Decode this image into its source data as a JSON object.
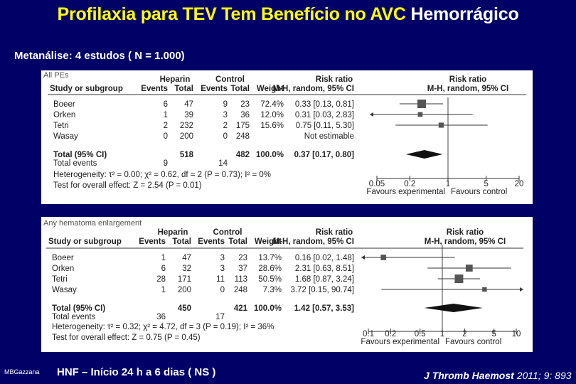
{
  "slide": {
    "title_part1": "Profilaxia para TEV Tem Benefício no AVC",
    "title_part2": "Hemorrágico",
    "subtitle": "Metanálise: 4 estudos ( N = 1.000)",
    "footer_left": "MBGazzana",
    "footer_mid": "HNF – Início 24 h a 6 dias ( NS )",
    "footer_right_journal": "J Thromb Haemost",
    "footer_right_ref": " 2011; 9: 893"
  },
  "chart_data": [
    {
      "type": "forest",
      "panel_label": "All PEs",
      "headers": {
        "group1": "Heparin",
        "group2": "Control",
        "study": "Study or subgroup",
        "events": "Events",
        "total": "Total",
        "weight": "Weight",
        "rr_top": "Risk ratio",
        "rr_method": "M-H, random, 95% CI"
      },
      "studies": [
        {
          "name": "Boeer",
          "e1": "6",
          "t1": "47",
          "e2": "9",
          "t2": "23",
          "weight": "72.4%",
          "ci_text": "0.33 [0.13, 0.81]",
          "rr": 0.33,
          "lo": 0.13,
          "hi": 0.81
        },
        {
          "name": "Orken",
          "e1": "1",
          "t1": "39",
          "e2": "3",
          "t2": "36",
          "weight": "12.0%",
          "ci_text": "0.31 [0.03, 2.83]",
          "rr": 0.31,
          "lo": 0.03,
          "hi": 2.83
        },
        {
          "name": "Tetri",
          "e1": "2",
          "t1": "232",
          "e2": "2",
          "t2": "175",
          "weight": "15.6%",
          "ci_text": "0.75 [0.11, 5.30]",
          "rr": 0.75,
          "lo": 0.11,
          "hi": 5.3
        },
        {
          "name": "Wasay",
          "e1": "0",
          "t1": "200",
          "e2": "0",
          "t2": "248",
          "weight": "",
          "ci_text": "Not estimable",
          "rr": null,
          "lo": null,
          "hi": null
        }
      ],
      "total": {
        "label": "Total (95% CI)",
        "t1": "518",
        "t2": "482",
        "weight": "100.0%",
        "ci_text": "0.37 [0.17, 0.80]",
        "rr": 0.37,
        "lo": 0.17,
        "hi": 0.8
      },
      "total_events": {
        "label": "Total events",
        "e1": "9",
        "e2": "14"
      },
      "heterogeneity": "Heterogeneity: τ² = 0.00; χ² = 0.62, df = 2 (P = 0.73); I² = 0%",
      "overall_effect": "Test for overall effect: Z = 2.54 (P = 0.01)",
      "axis": {
        "scale": "log",
        "ticks": [
          0.05,
          0.2,
          1,
          5,
          20
        ],
        "tick_labels": [
          "0.05",
          "0.2",
          "1",
          "5",
          "20"
        ],
        "left_label": "Favours experimental",
        "right_label": "Favours control"
      }
    },
    {
      "type": "forest",
      "panel_label": "Any hematoma enlargement",
      "headers": {
        "group1": "Heparin",
        "group2": "Control",
        "study": "Study or subgroup",
        "events": "Events",
        "total": "Total",
        "weight": "Weight",
        "rr_top": "Risk ratio",
        "rr_method": "M-H, random, 95% CI"
      },
      "studies": [
        {
          "name": "Boeer",
          "e1": "1",
          "t1": "47",
          "e2": "3",
          "t2": "23",
          "weight": "13.7%",
          "ci_text": "0.16 [0.02, 1.48]",
          "rr": 0.16,
          "lo": 0.02,
          "hi": 1.48
        },
        {
          "name": "Orken",
          "e1": "6",
          "t1": "32",
          "e2": "3",
          "t2": "37",
          "weight": "28.6%",
          "ci_text": "2.31 [0.63, 8.51]",
          "rr": 2.31,
          "lo": 0.63,
          "hi": 8.51
        },
        {
          "name": "Tetri",
          "e1": "28",
          "t1": "171",
          "e2": "11",
          "t2": "113",
          "weight": "50.5%",
          "ci_text": "1.68 [0.87, 3.24]",
          "rr": 1.68,
          "lo": 0.87,
          "hi": 3.24
        },
        {
          "name": "Wasay",
          "e1": "1",
          "t1": "200",
          "e2": "0",
          "t2": "248",
          "weight": "7.3%",
          "ci_text": "3.72 [0.15, 90.74]",
          "rr": 3.72,
          "lo": 0.15,
          "hi": 90.74
        }
      ],
      "total": {
        "label": "Total (95% CI)",
        "t1": "450",
        "t2": "421",
        "weight": "100.0%",
        "ci_text": "1.42 [0.57, 3.53]",
        "rr": 1.42,
        "lo": 0.57,
        "hi": 3.53
      },
      "total_events": {
        "label": "Total events",
        "e1": "36",
        "e2": "17"
      },
      "heterogeneity": "Heterogeneity: τ² = 0.32; χ² = 4.72, df = 3 (P = 0.19); I² = 36%",
      "overall_effect": "Test for overall effect: Z = 0.75 (P = 0.45)",
      "axis": {
        "scale": "log",
        "ticks": [
          0.1,
          0.2,
          0.5,
          1,
          2,
          5,
          10
        ],
        "tick_labels": [
          "0.1",
          "0.2",
          "0.5",
          "1",
          "2",
          "5",
          "10"
        ],
        "left_label": "Favours experimental",
        "right_label": "Favours control"
      }
    }
  ]
}
